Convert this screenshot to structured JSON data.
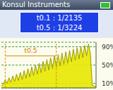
{
  "chart_data": {
    "type": "area",
    "title": "Konsul Instruments",
    "annotations": [
      "t0.1 : 1/2135",
      "t0.5 : 1/3224"
    ],
    "x": [
      0,
      2,
      4,
      6,
      8,
      10,
      12,
      14,
      16,
      18,
      20,
      22,
      24,
      26,
      28,
      30,
      32,
      34,
      36,
      38,
      40,
      42,
      44,
      46,
      48,
      50,
      52,
      54,
      56,
      58,
      60,
      62,
      64,
      66,
      68,
      70,
      72,
      74,
      76,
      78,
      80,
      82,
      84,
      86,
      88,
      90,
      92,
      94,
      96,
      98,
      100
    ],
    "values": [
      5,
      8,
      18,
      10,
      22,
      12,
      26,
      14,
      30,
      16,
      34,
      18,
      38,
      21,
      42,
      24,
      46,
      27,
      50,
      30,
      54,
      33,
      58,
      36,
      62,
      39,
      66,
      42,
      70,
      45,
      73,
      48,
      76,
      51,
      79,
      54,
      82,
      57,
      85,
      60,
      88,
      63,
      91,
      66,
      93,
      70,
      96,
      75,
      6,
      4,
      3
    ],
    "color": "#e8e800",
    "xlim": [
      0,
      100
    ],
    "ylim": [
      0,
      100
    ],
    "yticks": [
      {
        "value": 10,
        "label": "10%"
      },
      {
        "value": 50,
        "label": "50%"
      },
      {
        "value": 90,
        "label": "90%"
      }
    ],
    "grid": true,
    "tick_labels": "y",
    "interval": {
      "label": "t0.5",
      "start": 4,
      "end": 58
    }
  }
}
